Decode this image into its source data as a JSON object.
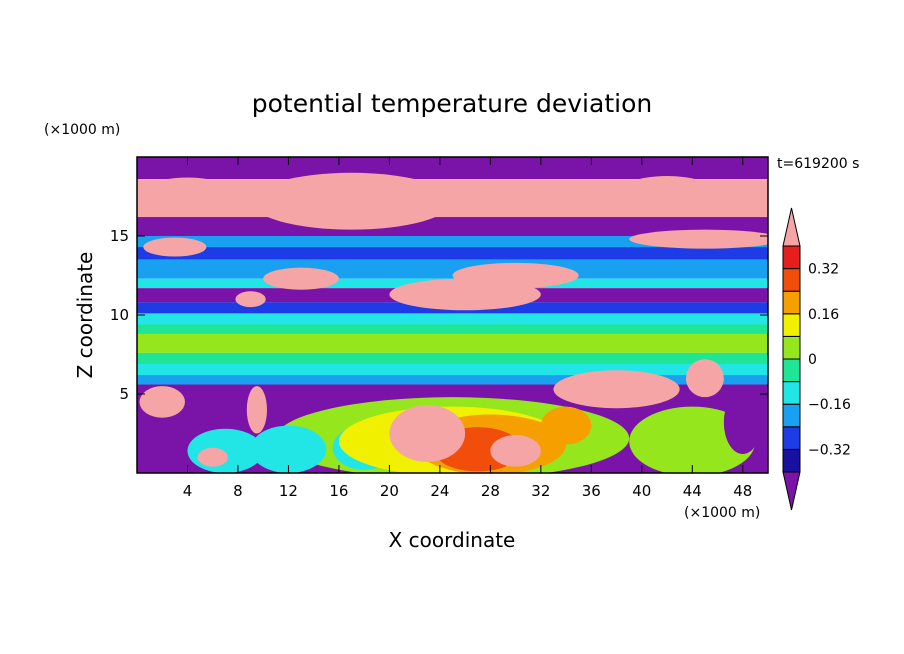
{
  "chart_data": {
    "type": "heatmap",
    "title": "potential temperature deviation",
    "xlabel": "X coordinate",
    "ylabel": "Z coordinate",
    "x_unit": "(×1000 m)",
    "y_unit": "(×1000 m)",
    "time_label": "t=619200 s",
    "xlim": [
      0,
      50
    ],
    "ylim": [
      0,
      20
    ],
    "x_ticks": [
      4,
      8,
      12,
      16,
      20,
      24,
      28,
      32,
      36,
      40,
      44,
      48
    ],
    "y_ticks": [
      5,
      10,
      15
    ],
    "colorbar": {
      "levels": [
        -0.4,
        -0.32,
        -0.24,
        -0.16,
        -0.08,
        0,
        0.08,
        0.16,
        0.24,
        0.32,
        0.4
      ],
      "colors": [
        "#7a14a8",
        "#1a10a0",
        "#1e3ce6",
        "#1aa0f0",
        "#22e6e6",
        "#1ee696",
        "#96e61e",
        "#f0f000",
        "#f5a000",
        "#f04e0a",
        "#e61e1e",
        "#f5a5a5"
      ],
      "tick_labels": [
        "-0.32",
        "-0.16",
        "0",
        "0.16",
        "0.32"
      ],
      "tick_values": [
        -0.32,
        -0.16,
        0,
        0.16,
        0.32
      ]
    },
    "layers": [
      {
        "z": [
          18.6,
          20
        ],
        "value": -0.45
      },
      {
        "z": [
          16.2,
          18.6
        ],
        "value": 0.45
      },
      {
        "z": [
          15.0,
          16.2
        ],
        "value": -0.45
      },
      {
        "z": [
          14.3,
          15.0
        ],
        "value": -0.2
      },
      {
        "z": [
          13.5,
          14.3
        ],
        "value": -0.3
      },
      {
        "z": [
          12.3,
          13.5
        ],
        "value": -0.2
      },
      {
        "z": [
          11.7,
          12.3
        ],
        "value": -0.12
      },
      {
        "z": [
          10.8,
          11.7
        ],
        "value": -0.45
      },
      {
        "z": [
          10.1,
          10.8
        ],
        "value": -0.3
      },
      {
        "z": [
          9.4,
          10.1
        ],
        "value": -0.12
      },
      {
        "z": [
          8.8,
          9.4
        ],
        "value": -0.04
      },
      {
        "z": [
          7.6,
          8.8
        ],
        "value": 0.05
      },
      {
        "z": [
          6.9,
          7.6
        ],
        "value": -0.04
      },
      {
        "z": [
          6.2,
          6.9
        ],
        "value": -0.12
      },
      {
        "z": [
          5.6,
          6.2
        ],
        "value": -0.2
      },
      {
        "z": [
          0,
          5.6
        ],
        "value": -0.45
      }
    ],
    "blobs": [
      {
        "x": 4,
        "z": 17.5,
        "rx": 4,
        "rz": 1.2,
        "value": 0.45
      },
      {
        "x": 17,
        "z": 17.2,
        "rx": 8,
        "rz": 1.8,
        "value": 0.45
      },
      {
        "x": 42,
        "z": 17.6,
        "rx": 4,
        "rz": 1.2,
        "value": 0.45
      },
      {
        "x": 45,
        "z": 14.8,
        "rx": 6,
        "rz": 0.6,
        "value": 0.45
      },
      {
        "x": 3,
        "z": 14.3,
        "rx": 2.5,
        "rz": 0.6,
        "value": 0.45
      },
      {
        "x": 13,
        "z": 12.3,
        "rx": 3,
        "rz": 0.7,
        "value": 0.45
      },
      {
        "x": 30,
        "z": 12.5,
        "rx": 5,
        "rz": 0.8,
        "value": 0.45
      },
      {
        "x": 26,
        "z": 11.3,
        "rx": 6,
        "rz": 1.0,
        "value": 0.45
      },
      {
        "x": 9,
        "z": 11.0,
        "rx": 1.2,
        "rz": 0.5,
        "value": 0.45
      },
      {
        "x": 38,
        "z": 5.3,
        "rx": 5,
        "rz": 1.2,
        "value": 0.45
      },
      {
        "x": 45,
        "z": 6.0,
        "rx": 1.5,
        "rz": 1.2,
        "value": 0.45
      },
      {
        "x": 25,
        "z": 2.2,
        "rx": 14,
        "rz": 2.6,
        "value": 0.02
      },
      {
        "x": 44,
        "z": 2.0,
        "rx": 5,
        "rz": 2.2,
        "value": 0.02
      },
      {
        "x": 7,
        "z": 1.4,
        "rx": 3,
        "rz": 1.4,
        "value": -0.12
      },
      {
        "x": 12,
        "z": 1.5,
        "rx": 3,
        "rz": 1.5,
        "value": -0.12
      },
      {
        "x": 18,
        "z": 1.6,
        "rx": 2.5,
        "rz": 1.4,
        "value": -0.12
      },
      {
        "x": 25,
        "z": 2.0,
        "rx": 9,
        "rz": 2.2,
        "value": 0.1
      },
      {
        "x": 28,
        "z": 1.8,
        "rx": 6,
        "rz": 1.9,
        "value": 0.2
      },
      {
        "x": 27,
        "z": 1.5,
        "rx": 3.5,
        "rz": 1.4,
        "value": 0.3
      },
      {
        "x": 23,
        "z": 2.5,
        "rx": 3,
        "rz": 1.8,
        "value": 0.45
      },
      {
        "x": 30,
        "z": 1.4,
        "rx": 2,
        "rz": 1.0,
        "value": 0.45
      },
      {
        "x": 34,
        "z": 3.0,
        "rx": 2,
        "rz": 1.2,
        "value": 0.2
      },
      {
        "x": 2,
        "z": 4.5,
        "rx": 1.8,
        "rz": 1.0,
        "value": 0.45
      },
      {
        "x": 6,
        "z": 1.0,
        "rx": 1.2,
        "rz": 0.6,
        "value": 0.45
      },
      {
        "x": 9.5,
        "z": 4.0,
        "rx": 0.8,
        "rz": 1.5,
        "value": 0.45
      },
      {
        "x": 48,
        "z": 3.2,
        "rx": 1.5,
        "rz": 2.0,
        "value": -0.45
      }
    ]
  }
}
